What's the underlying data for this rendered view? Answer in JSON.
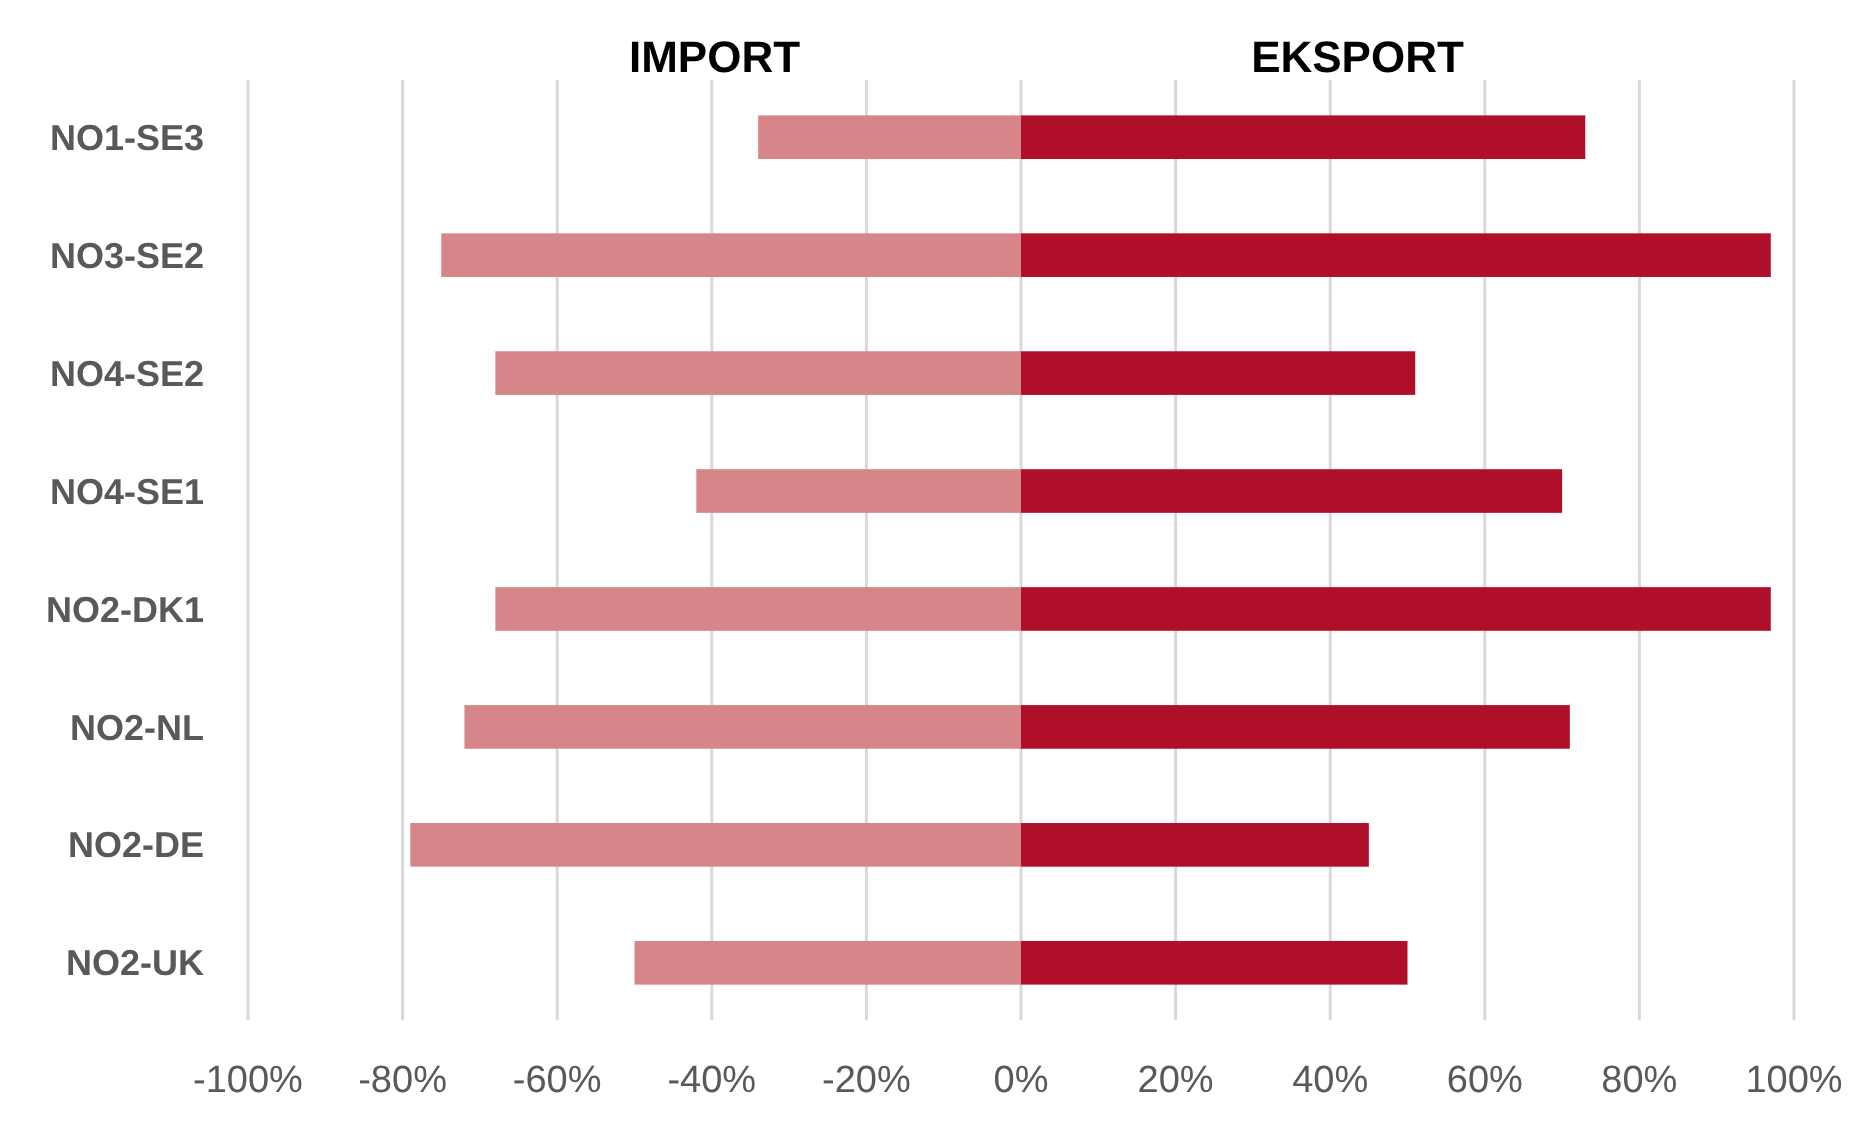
{
  "chart_data": {
    "type": "bar",
    "orientation": "horizontal",
    "stacked": true,
    "categories": [
      "NO1-SE3",
      "NO3-SE2",
      "NO4-SE2",
      "NO4-SE1",
      "NO2-DK1",
      "NO2-NL",
      "NO2-DE",
      "NO2-UK"
    ],
    "series": [
      {
        "name": "IMPORT",
        "color": "#d68589",
        "values": [
          -34,
          -75,
          -68,
          -42,
          -68,
          -72,
          -79,
          -50
        ]
      },
      {
        "name": "EKSPORT",
        "color": "#b00f2a",
        "values": [
          73,
          97,
          51,
          70,
          97,
          71,
          45,
          50
        ]
      }
    ],
    "xlim": [
      -100,
      100
    ],
    "xticks": [
      {
        "value": -100,
        "label": "-100%"
      },
      {
        "value": -80,
        "label": "-80%"
      },
      {
        "value": -60,
        "label": "-60%"
      },
      {
        "value": -40,
        "label": "-40%"
      },
      {
        "value": -20,
        "label": "-20%"
      },
      {
        "value": 0,
        "label": "0%"
      },
      {
        "value": 20,
        "label": "20%"
      },
      {
        "value": 40,
        "label": "40%"
      },
      {
        "value": 60,
        "label": "60%"
      },
      {
        "value": 80,
        "label": "80%"
      },
      {
        "value": 100,
        "label": "100%"
      }
    ],
    "grid": "x"
  }
}
